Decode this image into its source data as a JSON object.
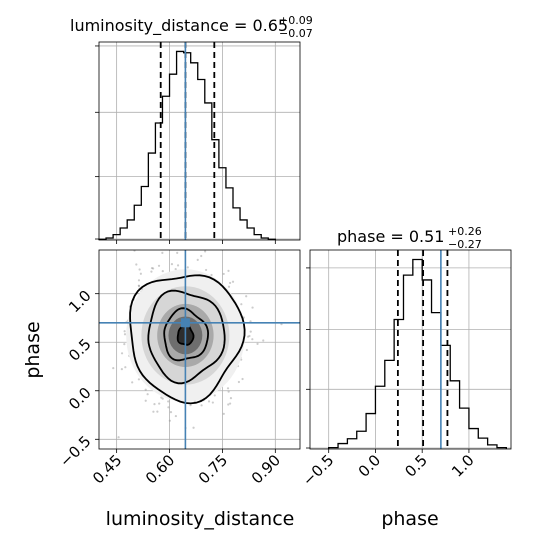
{
  "chart_data": [
    {
      "type": "histogram",
      "panel": "top-left",
      "parameter": "luminosity_distance",
      "title": {
        "name": "luminosity_distance",
        "median": "0.65",
        "plus": "+0.09",
        "minus": "−0.07"
      },
      "xlim": [
        0.4,
        0.97
      ],
      "x_ticks": [
        0.45,
        0.6,
        0.75,
        0.9
      ],
      "bin_edges": [
        0.4,
        0.42,
        0.44,
        0.46,
        0.48,
        0.5,
        0.52,
        0.54,
        0.56,
        0.58,
        0.6,
        0.62,
        0.64,
        0.66,
        0.68,
        0.7,
        0.72,
        0.74,
        0.76,
        0.78,
        0.8,
        0.82,
        0.84,
        0.86,
        0.88,
        0.9
      ],
      "counts": [
        1,
        3,
        8,
        18,
        30,
        52,
        80,
        130,
        175,
        215,
        248,
        282,
        280,
        265,
        240,
        205,
        150,
        108,
        78,
        48,
        30,
        18,
        8,
        3,
        1
      ],
      "quantiles": [
        0.575,
        0.645,
        0.727
      ],
      "truth": 0.645,
      "grid": true
    },
    {
      "type": "histogram",
      "panel": "bottom-right",
      "parameter": "phase",
      "title": {
        "name": "phase",
        "median": "0.51",
        "plus": "+0.26",
        "minus": "−0.27"
      },
      "xlim": [
        -0.7,
        1.45
      ],
      "x_ticks": [
        -0.5,
        0.0,
        0.5,
        1.0
      ],
      "x_tick_labels": [
        "−0.5",
        "0.0",
        "0.5",
        "1.0"
      ],
      "bin_edges": [
        -0.5,
        -0.4,
        -0.3,
        -0.2,
        -0.1,
        0.0,
        0.1,
        0.2,
        0.3,
        0.4,
        0.5,
        0.6,
        0.7,
        0.8,
        0.9,
        1.0,
        1.1,
        1.2,
        1.3,
        1.4
      ],
      "counts": [
        2,
        8,
        15,
        26,
        52,
        92,
        130,
        190,
        255,
        278,
        248,
        200,
        152,
        100,
        60,
        30,
        16,
        6,
        2
      ],
      "quantiles": [
        0.24,
        0.51,
        0.77
      ],
      "truth": 0.7,
      "grid": true
    },
    {
      "type": "2d-density",
      "panel": "bottom-left",
      "x_param": "luminosity_distance",
      "y_param": "phase",
      "xlabel": "luminosity_distance",
      "ylabel": "phase",
      "xlim": [
        0.4,
        0.97
      ],
      "ylim": [
        -0.6,
        1.45
      ],
      "x_ticks": [
        0.45,
        0.6,
        0.75,
        0.9
      ],
      "y_ticks": [
        -0.5,
        0.0,
        0.5,
        1.0
      ],
      "y_tick_labels": [
        "−0.5",
        "0.0",
        "0.5",
        "1.0"
      ],
      "center": [
        0.645,
        0.57
      ],
      "contour_radii": [
        [
          0.022,
          0.1
        ],
        [
          0.062,
          0.26
        ],
        [
          0.108,
          0.46
        ],
        [
          0.16,
          0.65
        ]
      ],
      "truth": [
        0.645,
        0.7
      ],
      "truth_color": "#4682b4",
      "grid": true
    }
  ]
}
